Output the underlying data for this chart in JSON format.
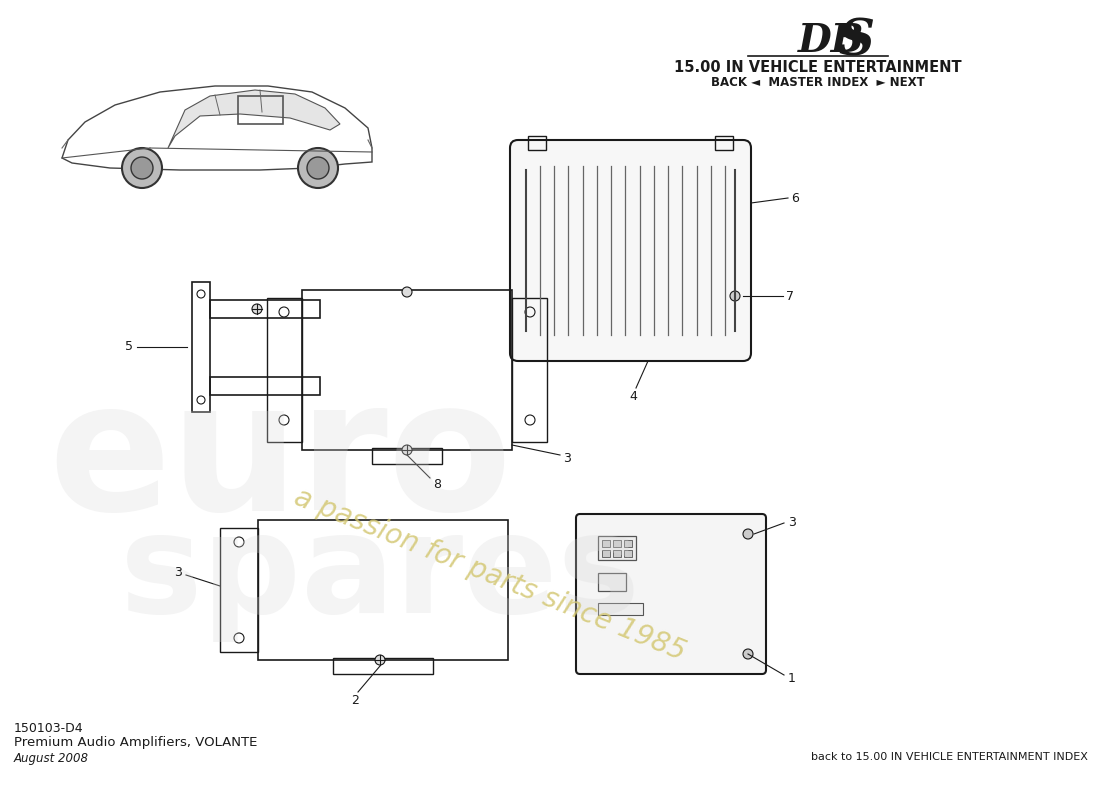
{
  "title_dbs_part1": "DB",
  "title_dbs_part2": "S",
  "title_section": "15.00 IN VEHICLE ENTERTAINMENT",
  "nav_text": "BACK ◄  MASTER INDEX  ► NEXT",
  "part_number": "150103-D4",
  "part_name": "Premium Audio Amplifiers, VOLANTE",
  "date": "August 2008",
  "footer_right": "back to 15.00 IN VEHICLE ENTERTAINMENT INDEX",
  "watermark_line1": "a passion for parts since 1985",
  "bg_color": "#ffffff",
  "line_color": "#1a1a1a",
  "watermark_color_text": "#d4c875",
  "watermark_color_logo": "#d8d8d8"
}
